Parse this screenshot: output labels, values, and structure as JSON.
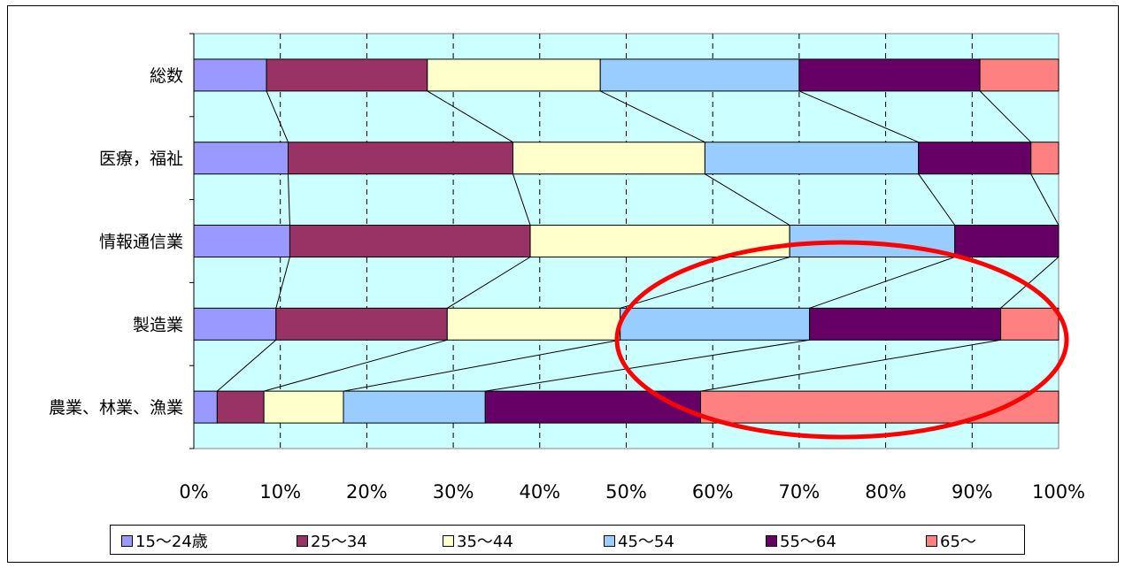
{
  "chart_data": {
    "type": "bar",
    "orientation": "horizontal",
    "stacked": "percent",
    "categories": [
      "総数",
      "医療，福祉",
      "情報通信業",
      "製造業",
      "農業、林業、漁業"
    ],
    "series": [
      {
        "name": "15～24歳",
        "color": "#9999ff",
        "values": [
          8.4,
          10.9,
          11.1,
          9.5,
          2.7
        ]
      },
      {
        "name": "25～34",
        "color": "#993366",
        "values": [
          18.6,
          26.0,
          27.8,
          19.8,
          5.4
        ]
      },
      {
        "name": "35～44",
        "color": "#ffffcc",
        "values": [
          20.0,
          22.2,
          30.0,
          20.0,
          9.2
        ]
      },
      {
        "name": "45～54",
        "color": "#99ccff",
        "values": [
          23.0,
          24.7,
          19.1,
          21.9,
          16.4
        ]
      },
      {
        "name": "55～64",
        "color": "#660066",
        "values": [
          20.9,
          13.0,
          12.0,
          22.1,
          24.9
        ]
      },
      {
        "name": "65～",
        "color": "#ff8080",
        "values": [
          9.1,
          3.2,
          0.0,
          6.7,
          41.4
        ]
      }
    ],
    "xlim": [
      0,
      100
    ],
    "x_ticks": [
      "0%",
      "10%",
      "20%",
      "30%",
      "40%",
      "50%",
      "60%",
      "70%",
      "80%",
      "90%",
      "100%"
    ],
    "grid": "vertical dashed",
    "series_lines": true,
    "legend_position": "bottom",
    "plot_background": "#ccffff",
    "annotation": {
      "shape": "ellipse",
      "color": "#ff0000"
    }
  }
}
